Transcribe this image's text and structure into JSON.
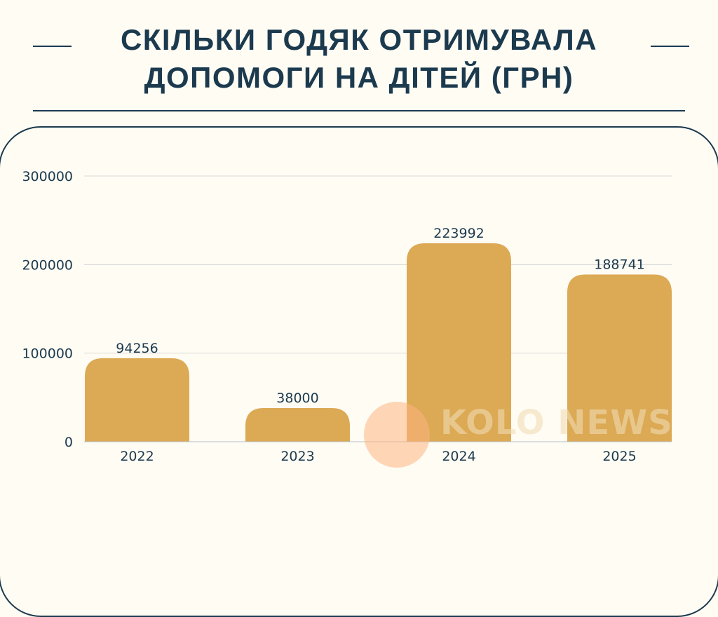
{
  "chart_data": {
    "type": "bar",
    "title": "СКІЛЬКИ ГОДЯК ОТРИМУВАЛА ДОПОМОГИ НА ДІТЕЙ (ГРН)",
    "categories": [
      "2022",
      "2023",
      "2024",
      "2025"
    ],
    "values": [
      94256,
      38000,
      223992,
      188741
    ],
    "data_labels": [
      "94256",
      "38000",
      "223992",
      "188741"
    ],
    "y_ticks": [
      "0",
      "100000",
      "200000",
      "300000"
    ],
    "ylim": [
      0,
      300000
    ],
    "xlabel": "",
    "ylabel": "",
    "grid": true,
    "bar_color": "#dca954",
    "text_color": "#1c3a4e"
  },
  "title_line1": "СКІЛЬКИ ГОДЯК ОТРИМУВАЛА",
  "title_line2": "ДОПОМОГИ НА ДІТЕЙ (ГРН)",
  "watermark": "KOLO NEWS"
}
